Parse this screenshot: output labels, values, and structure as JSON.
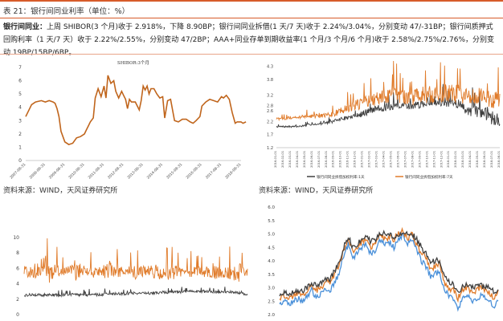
{
  "header": {
    "title": "表 21：银行间同业利率（单位：%）"
  },
  "paragraph": {
    "lead": "银行间同业：",
    "body": "上周 SHIBOR(3 个月)收于 2.918%，下降 8.90BP；银行间同业拆借(1 天/7 天)收于 2.24%/3.04%，分别变动 47/-31BP；银行间质押式回购利率（1 天/7 天）收于 2.22%/2.55%，分别变动 47/2BP；AAA+同业存单到期收益率(1 个月/3 个月/6 个月)收于 2.58%/2.75%/2.76%，分别变动 19BP/15BP/6BP。"
  },
  "sources": {
    "left": "资料来源：WIND，天风证券研究所",
    "right": "资料来源：WIND，天风证券研究所"
  },
  "colors": {
    "orange": "#e07b2a",
    "dark": "#404040",
    "blue": "#4a90d9",
    "darkbrown": "#c0651c"
  },
  "chart_data": [
    {
      "type": "line",
      "title": "SHIBOR:3个月",
      "ylim": [
        0,
        7
      ],
      "yticks": [
        0,
        1,
        2,
        3,
        4,
        5,
        6,
        7
      ],
      "xticklabels": [
        "2007-08-31",
        "2008-08-31",
        "2009-08-31",
        "2010-08-31",
        "2011-08-31",
        "2012-08-31",
        "2013-08-31",
        "2014-08-31",
        "2015-08-31",
        "2016-08-31",
        "2017-08-31",
        "2018-08-31"
      ],
      "series": [
        {
          "name": "",
          "color": "#c0651c",
          "x": [
            0,
            0.3,
            0.5,
            0.8,
            1.0,
            1.2,
            1.4,
            1.5,
            1.6,
            1.7,
            1.8,
            2.0,
            2.2,
            2.4,
            2.6,
            2.8,
            3.0,
            3.1,
            3.2,
            3.3,
            3.45,
            3.55,
            3.7,
            3.85,
            4.0,
            4.1,
            4.2,
            4.35,
            4.5,
            4.6,
            4.75,
            4.9,
            5.0,
            5.1,
            5.2,
            5.3,
            5.4,
            5.6,
            5.8,
            5.9,
            6.0,
            6.1,
            6.2,
            6.3,
            6.4,
            6.55,
            6.7,
            6.85,
            7.0,
            7.1,
            7.25,
            7.4,
            7.6,
            7.8,
            8.0,
            8.2,
            8.4,
            8.55,
            8.7,
            8.9,
            9.0,
            9.2,
            9.4,
            9.6,
            9.8,
            10.0,
            10.1,
            10.25,
            10.4,
            10.55,
            10.7,
            10.8,
            10.9,
            11.0,
            11.1,
            11.25
          ],
          "y": [
            3.3,
            4.2,
            4.4,
            4.5,
            4.4,
            4.5,
            4.4,
            4.3,
            3.9,
            3.3,
            2.2,
            1.4,
            1.2,
            1.3,
            1.7,
            1.8,
            2.0,
            2.3,
            2.6,
            2.9,
            3.2,
            4.7,
            5.4,
            4.8,
            5.6,
            4.7,
            6.4,
            5.8,
            6.0,
            5.2,
            4.7,
            5.2,
            4.9,
            4.6,
            3.9,
            4.6,
            4.4,
            4.4,
            3.8,
            4.5,
            5.6,
            5.3,
            5.6,
            5.0,
            5.4,
            5.4,
            5.0,
            4.7,
            4.8,
            3.2,
            4.5,
            4.6,
            3.0,
            2.9,
            3.1,
            3.1,
            2.9,
            2.8,
            3.0,
            3.3,
            4.1,
            4.4,
            4.6,
            4.5,
            4.4,
            4.8,
            4.7,
            4.9,
            4.6,
            3.6,
            2.8,
            2.9,
            2.9,
            2.9,
            2.8,
            2.9
          ]
        }
      ]
    },
    {
      "type": "line",
      "title": "",
      "ylim": [
        1.2,
        4.5
      ],
      "yticks": [
        1.2,
        1.7,
        2.2,
        2.6,
        2.8,
        3.2,
        3.8,
        4.3
      ],
      "xticklabels": [
        "2016-01-01",
        "2016-02-01",
        "2016-03-01",
        "2016-04-01",
        "2016-05-01",
        "2016-06-01",
        "2016-07-01",
        "2016-08-01",
        "2016-09-01",
        "2016-10-01",
        "2016-11-01",
        "2016-12-01",
        "2017-01-01",
        "2017-02-01",
        "2017-03-01",
        "2017-04-01",
        "2017-05-01",
        "2017-06-01",
        "2017-07-01",
        "2017-08-01",
        "2017-09-01",
        "2017-10-01",
        "2017-11-01",
        "2017-12-01",
        "2018-01-01",
        "2018-02-01",
        "2018-03-01",
        "2018-04-01",
        "2018-05-01",
        "2018-06-01",
        "2018-07-01",
        "2018-08-01"
      ],
      "legend": [
        "银行间同业拆借加权利率:1天",
        "银行间同业拆借加权利率:7天"
      ],
      "series": [
        {
          "name": "银行间同业拆借加权利率:1天",
          "color": "#404040",
          "base": [
            2.0,
            2.0,
            2.0,
            2.0,
            2.05,
            2.1,
            2.1,
            2.15,
            2.2,
            2.3,
            2.35,
            2.4,
            2.5,
            2.6,
            2.7,
            2.7,
            2.75,
            2.8,
            2.8,
            2.8,
            2.85,
            2.9,
            2.95,
            2.95,
            2.9,
            2.9,
            2.7,
            2.6,
            2.6,
            2.5,
            2.3,
            2.2
          ],
          "spike": [
            0.05,
            0.05,
            0.05,
            0.05,
            0.06,
            0.06,
            0.06,
            0.08,
            0.1,
            0.12,
            0.12,
            0.15,
            0.2,
            0.22,
            0.22,
            0.2,
            0.22,
            0.22,
            0.2,
            0.22,
            0.25,
            0.25,
            0.28,
            0.3,
            0.3,
            0.32,
            0.35,
            0.35,
            0.4,
            0.4,
            0.45,
            0.5
          ]
        },
        {
          "name": "银行间同业拆借加权利率:7天",
          "color": "#e07b2a",
          "base": [
            2.3,
            2.3,
            2.35,
            2.35,
            2.4,
            2.4,
            2.4,
            2.45,
            2.5,
            2.6,
            2.7,
            2.8,
            2.9,
            3.0,
            3.1,
            3.1,
            3.2,
            3.2,
            3.1,
            3.1,
            3.2,
            3.2,
            3.25,
            3.3,
            3.3,
            3.25,
            3.2,
            3.1,
            3.2,
            3.1,
            3.0,
            3.1
          ],
          "spike": [
            0.08,
            0.08,
            0.1,
            0.1,
            0.1,
            0.12,
            0.12,
            0.15,
            0.2,
            0.25,
            0.3,
            0.35,
            0.4,
            0.45,
            0.5,
            0.45,
            0.5,
            0.5,
            0.45,
            0.5,
            0.55,
            0.55,
            0.6,
            0.65,
            0.6,
            0.6,
            0.55,
            0.5,
            0.55,
            0.5,
            0.5,
            0.55
          ]
        }
      ]
    },
    {
      "type": "line",
      "title": "",
      "ylim": [
        0,
        10
      ],
      "yticks": [
        0,
        2,
        4,
        6,
        8,
        10
      ],
      "series": [
        {
          "name": "",
          "color": "#e07b2a",
          "base": [
            5.6,
            5.5,
            5.6,
            5.5,
            5.6,
            5.7,
            5.6,
            5.7,
            5.6,
            5.6,
            5.7,
            5.6,
            5.6,
            5.5,
            5.6,
            5.6,
            5.5,
            5.6,
            5.5,
            5.6,
            5.6,
            5.5,
            5.5,
            5.4,
            5.5,
            5.4,
            5.4
          ],
          "spike": [
            1.2,
            1.5,
            1.0,
            2.4,
            1.2,
            1.0,
            2.2,
            1.0,
            1.5,
            1.0,
            2.4,
            1.2,
            1.0,
            1.6,
            1.2,
            1.4,
            1.8,
            2.0,
            1.0,
            1.5,
            1.2,
            1.2,
            2.0,
            1.0,
            1.5,
            2.2,
            1.0
          ]
        },
        {
          "name": "",
          "color": "#404040",
          "base": [
            2.5,
            2.6,
            2.5,
            2.6,
            2.5,
            2.6,
            2.6,
            2.5,
            2.6,
            2.6,
            2.7,
            2.7,
            2.7,
            2.8,
            2.8,
            2.8,
            2.9,
            2.9,
            2.9,
            3.0,
            3.0,
            3.0,
            2.9,
            2.9,
            2.9,
            2.8,
            2.6
          ],
          "spike": [
            0.3,
            0.3,
            0.3,
            0.3,
            0.3,
            0.3,
            0.3,
            0.3,
            0.3,
            0.3,
            0.3,
            0.3,
            0.3,
            0.3,
            0.3,
            0.3,
            0.3,
            0.3,
            0.3,
            0.3,
            0.3,
            0.3,
            0.3,
            0.3,
            0.3,
            0.3,
            0.3
          ]
        }
      ]
    },
    {
      "type": "line",
      "title": "",
      "ylim": [
        2.0,
        6.0
      ],
      "yticks": [
        2.0,
        2.5,
        3.0,
        3.5,
        4.0,
        4.5,
        5.0,
        5.5,
        6.0
      ],
      "series": [
        {
          "name": "",
          "color": "#4a90d9",
          "y": [
            2.4,
            2.5,
            2.4,
            2.5,
            2.6,
            2.5,
            2.7,
            2.9,
            2.6,
            2.8,
            3.0,
            2.9,
            3.2,
            3.5,
            4.2,
            4.6,
            4.0,
            4.3,
            4.5,
            4.6,
            4.2,
            4.4,
            4.8,
            4.6,
            4.7,
            4.5,
            4.8,
            5.0,
            4.6,
            4.8,
            4.4,
            4.0,
            3.8,
            3.4,
            3.5,
            3.6,
            2.9,
            2.7,
            2.6,
            2.2,
            2.6,
            2.7,
            2.5,
            2.6,
            2.7,
            2.6,
            2.5,
            2.3,
            2.6
          ]
        },
        {
          "name": "",
          "color": "#e07b2a",
          "y": [
            2.6,
            2.7,
            2.6,
            2.7,
            2.8,
            2.7,
            2.9,
            3.1,
            2.9,
            3.0,
            3.2,
            3.2,
            3.5,
            3.8,
            4.4,
            4.8,
            4.3,
            4.5,
            4.7,
            4.8,
            4.5,
            4.6,
            5.0,
            4.8,
            4.9,
            4.8,
            5.0,
            5.1,
            4.8,
            5.0,
            4.6,
            4.3,
            4.1,
            3.7,
            3.8,
            3.9,
            3.2,
            3.0,
            2.9,
            2.6,
            2.9,
            3.0,
            2.8,
            2.9,
            3.0,
            2.9,
            2.8,
            2.6,
            2.9
          ]
        },
        {
          "name": "",
          "color": "#404040",
          "y": [
            2.7,
            2.8,
            2.8,
            2.8,
            2.9,
            2.9,
            3.0,
            3.2,
            3.1,
            3.2,
            3.3,
            3.3,
            3.6,
            3.9,
            4.5,
            4.9,
            4.5,
            4.6,
            4.8,
            4.9,
            4.7,
            4.8,
            5.0,
            5.0,
            5.0,
            4.9,
            5.0,
            5.1,
            5.0,
            5.0,
            4.8,
            4.5,
            4.3,
            4.0,
            4.0,
            4.0,
            3.4,
            3.2,
            3.1,
            2.8,
            3.0,
            3.1,
            3.0,
            3.1,
            3.1,
            3.0,
            3.0,
            2.8,
            3.0
          ]
        }
      ]
    }
  ]
}
